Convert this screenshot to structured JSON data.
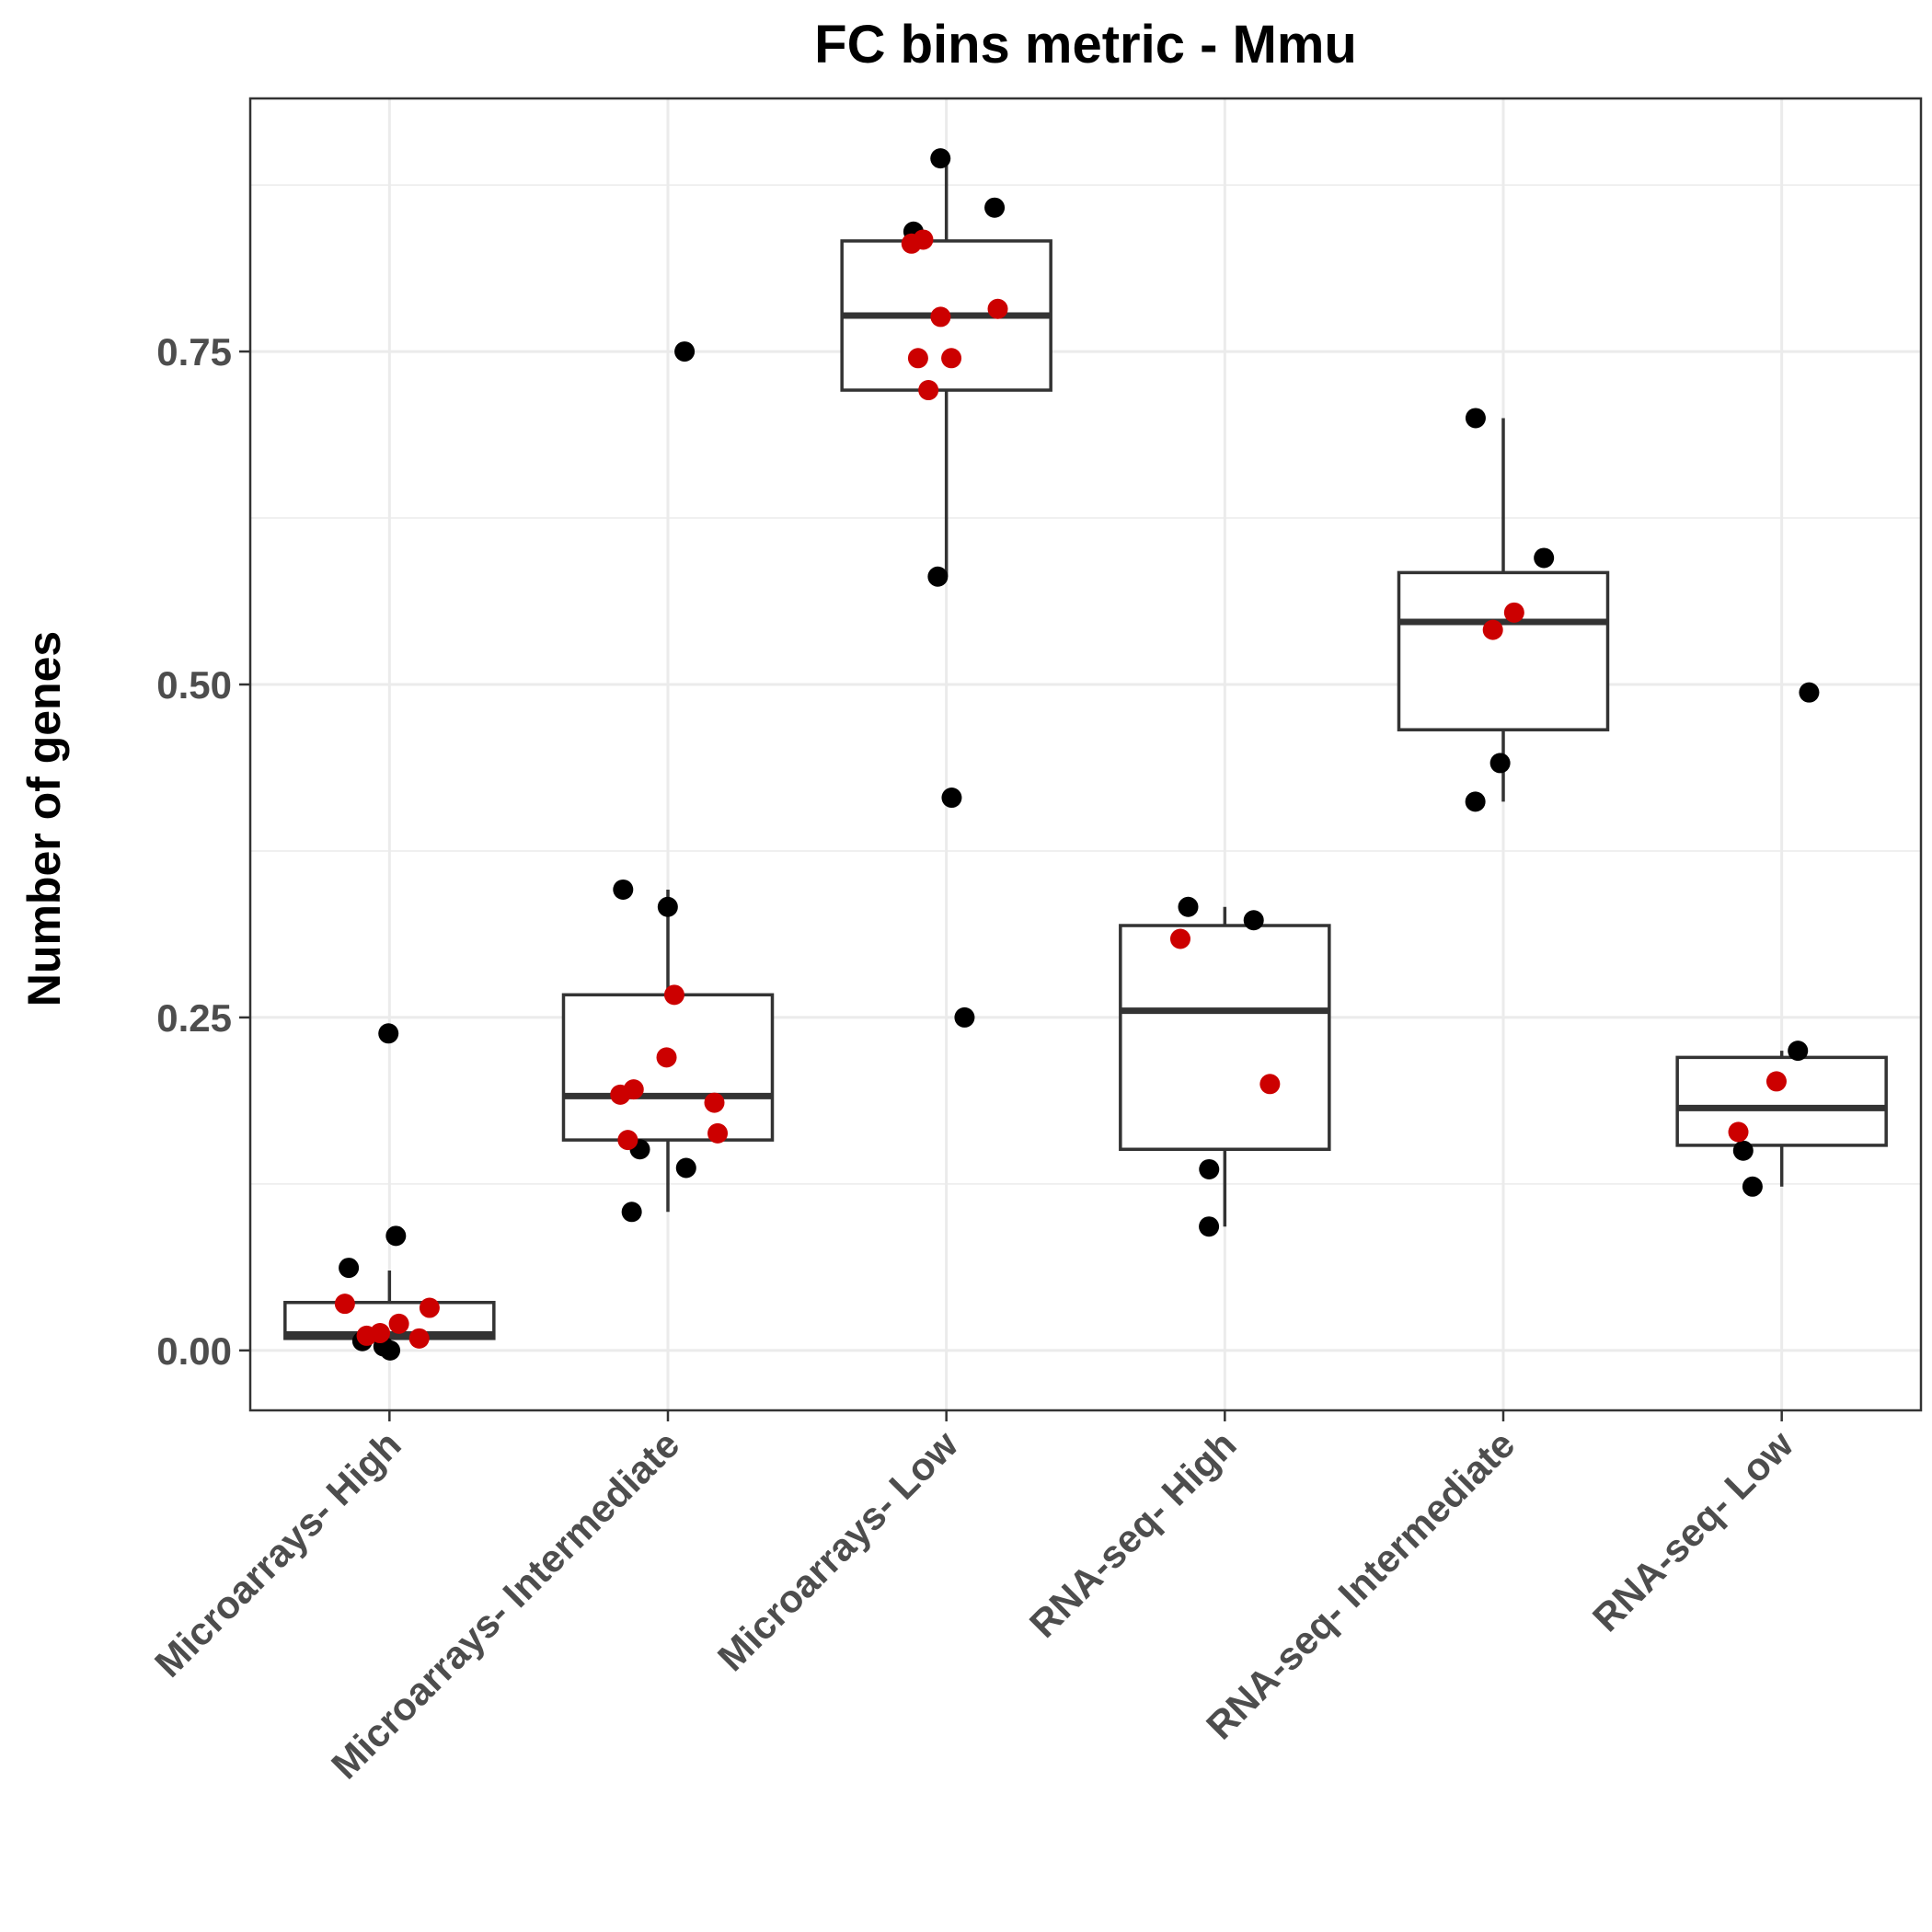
{
  "chart_data": {
    "type": "box",
    "title": "FC bins metric - Mmu",
    "xlabel": "",
    "ylabel": "Number of genes",
    "ylim": [
      -0.045,
      0.94
    ],
    "y_ticks": [
      0.0,
      0.25,
      0.5,
      0.75
    ],
    "y_tick_labels": [
      "0.00",
      "0.25",
      "0.50",
      "0.75"
    ],
    "grid": true,
    "colors": {
      "black_points": "#000000",
      "red_points": "#cc0000",
      "box_line": "#333333"
    },
    "categories": [
      {
        "label": "Microarrays- High",
        "box": {
          "lower_whisker": 0.0,
          "q1": 0.009,
          "median": 0.012,
          "q3": 0.036,
          "upper_whisker": 0.06
        },
        "black_points": [
          0.238,
          0.086,
          0.062,
          0.007,
          0.003,
          0.0
        ],
        "red_points": [
          0.035,
          0.032,
          0.02,
          0.013,
          0.011,
          0.009
        ]
      },
      {
        "label": "Microarrays- Intermediate",
        "box": {
          "lower_whisker": 0.104,
          "q1": 0.158,
          "median": 0.191,
          "q3": 0.267,
          "upper_whisker": 0.346
        },
        "black_points": [
          0.75,
          0.346,
          0.333,
          0.151,
          0.137,
          0.104
        ],
        "red_points": [
          0.267,
          0.22,
          0.196,
          0.192,
          0.186,
          0.163,
          0.158
        ]
      },
      {
        "label": "Microarrays- Low",
        "box": {
          "lower_whisker": 0.581,
          "q1": 0.721,
          "median": 0.777,
          "q3": 0.833,
          "upper_whisker": 0.895
        },
        "black_points": [
          0.895,
          0.858,
          0.84,
          0.581,
          0.415,
          0.25
        ],
        "red_points": [
          0.834,
          0.831,
          0.782,
          0.776,
          0.745,
          0.745,
          0.721
        ]
      },
      {
        "label": "RNA-seq- High",
        "box": {
          "lower_whisker": 0.093,
          "q1": 0.151,
          "median": 0.255,
          "q3": 0.319,
          "upper_whisker": 0.333
        },
        "black_points": [
          0.333,
          0.323,
          0.136,
          0.093
        ],
        "red_points": [
          0.309,
          0.2
        ]
      },
      {
        "label": "RNA-seq- Intermediate",
        "box": {
          "lower_whisker": 0.412,
          "q1": 0.466,
          "median": 0.547,
          "q3": 0.584,
          "upper_whisker": 0.7
        },
        "black_points": [
          0.7,
          0.595,
          0.441,
          0.412
        ],
        "red_points": [
          0.554,
          0.541
        ]
      },
      {
        "label": "RNA-seq- Low",
        "box": {
          "lower_whisker": 0.123,
          "q1": 0.154,
          "median": 0.182,
          "q3": 0.22,
          "upper_whisker": 0.225
        },
        "black_points": [
          0.494,
          0.225,
          0.15,
          0.123
        ],
        "red_points": [
          0.202,
          0.164
        ]
      }
    ]
  }
}
